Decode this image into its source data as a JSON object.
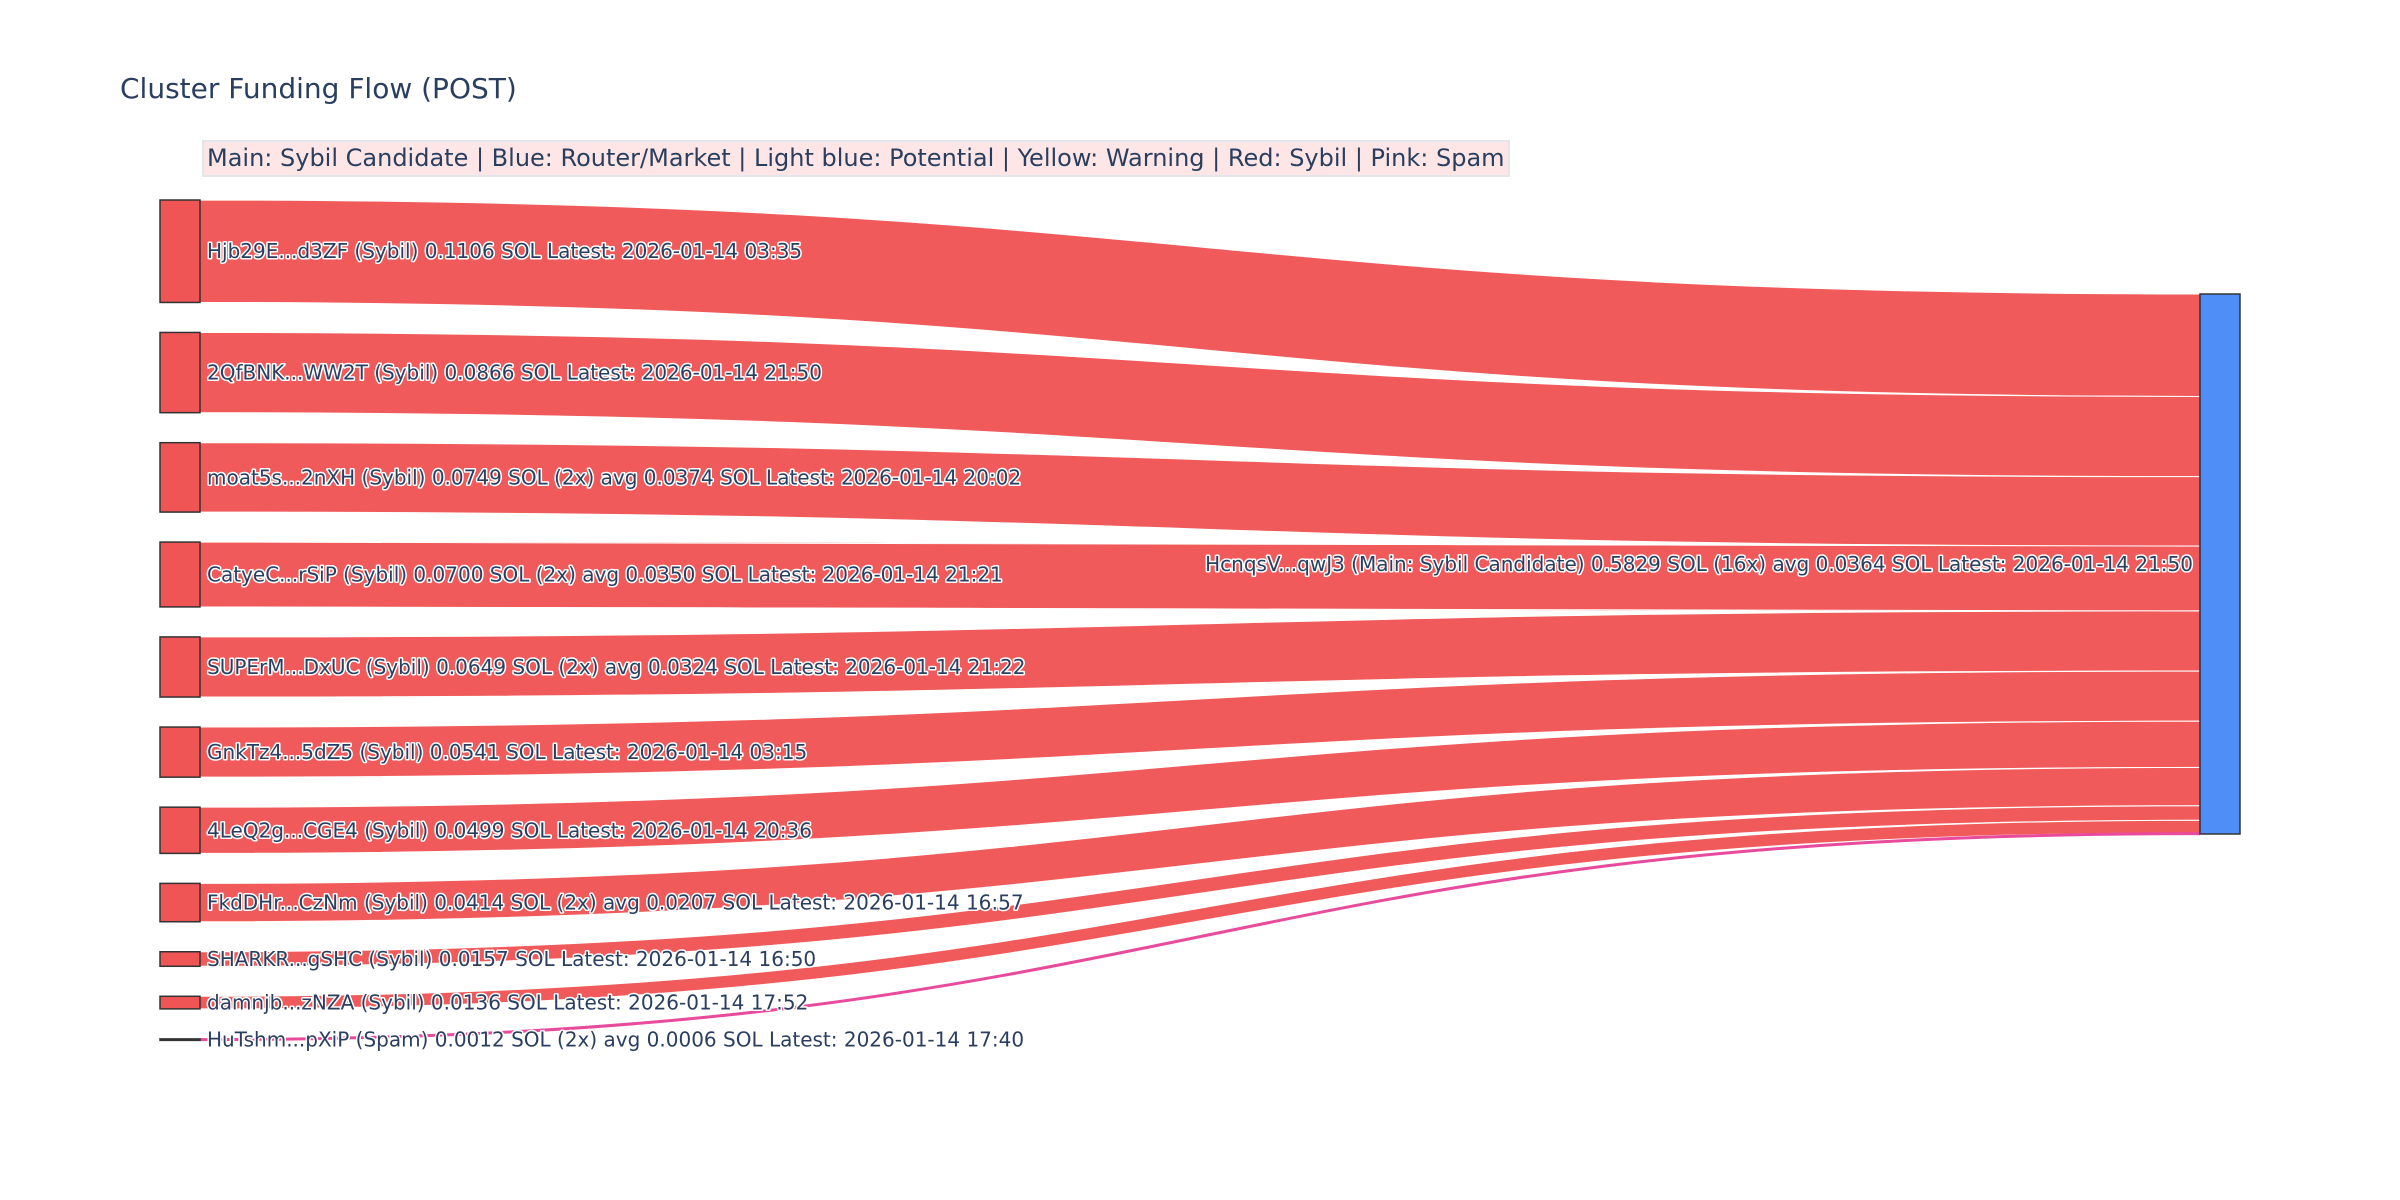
{
  "title": "Cluster Funding Flow (POST)",
  "annotation": "Main: Sybil Candidate  |  Blue: Router/Market | Light blue: Potential | Yellow: Warning | Red: Sybil | Pink: Spam",
  "colors": {
    "sybil": "#ef5555",
    "spam": "#e84a9c",
    "main": "#4f8ef7",
    "node_border": "#333333",
    "text": "#2a3f5f"
  },
  "chart_data": {
    "type": "sankey",
    "title": "Cluster Funding Flow (POST)",
    "target": {
      "label": "HcnqsV...qwJ3 (Main: Sybil Candidate) 0.5829 SOL (16x) avg 0.0364 SOL Latest: 2026-01-14 21:50",
      "value": 0.5829,
      "category": "main"
    },
    "sources": [
      {
        "label": "Hjb29E...d3ZF (Sybil) 0.1106 SOL Latest: 2026-01-14 03:35",
        "value": 0.1106,
        "category": "sybil"
      },
      {
        "label": "2QfBNK...WW2T (Sybil) 0.0866 SOL Latest: 2026-01-14 21:50",
        "value": 0.0866,
        "category": "sybil"
      },
      {
        "label": "moat5s...2nXH (Sybil) 0.0749 SOL (2x) avg 0.0374 SOL Latest: 2026-01-14 20:02",
        "value": 0.0749,
        "category": "sybil"
      },
      {
        "label": "CatyeC...rSiP (Sybil) 0.0700 SOL (2x) avg 0.0350 SOL Latest: 2026-01-14 21:21",
        "value": 0.07,
        "category": "sybil"
      },
      {
        "label": "SUPErM...DxUC (Sybil) 0.0649 SOL (2x) avg 0.0324 SOL Latest: 2026-01-14 21:22",
        "value": 0.0649,
        "category": "sybil"
      },
      {
        "label": "GnkTz4...5dZ5 (Sybil) 0.0541 SOL Latest: 2026-01-14 03:15",
        "value": 0.0541,
        "category": "sybil"
      },
      {
        "label": "4LeQ2g...CGE4 (Sybil) 0.0499 SOL Latest: 2026-01-14 20:36",
        "value": 0.0499,
        "category": "sybil"
      },
      {
        "label": "FkdDHr...CzNm (Sybil) 0.0414 SOL (2x) avg 0.0207 SOL Latest: 2026-01-14 16:57",
        "value": 0.0414,
        "category": "sybil"
      },
      {
        "label": "SHARKR...gSHC (Sybil) 0.0157 SOL Latest: 2026-01-14 16:50",
        "value": 0.0157,
        "category": "sybil"
      },
      {
        "label": "damnjb...zNZA (Sybil) 0.0136 SOL Latest: 2026-01-14 17:52",
        "value": 0.0136,
        "category": "sybil"
      },
      {
        "label": "HuTshm...pXiP (Spam) 0.0012 SOL (2x) avg 0.0006 SOL Latest: 2026-01-14 17:40",
        "value": 0.0012,
        "category": "spam"
      }
    ]
  }
}
